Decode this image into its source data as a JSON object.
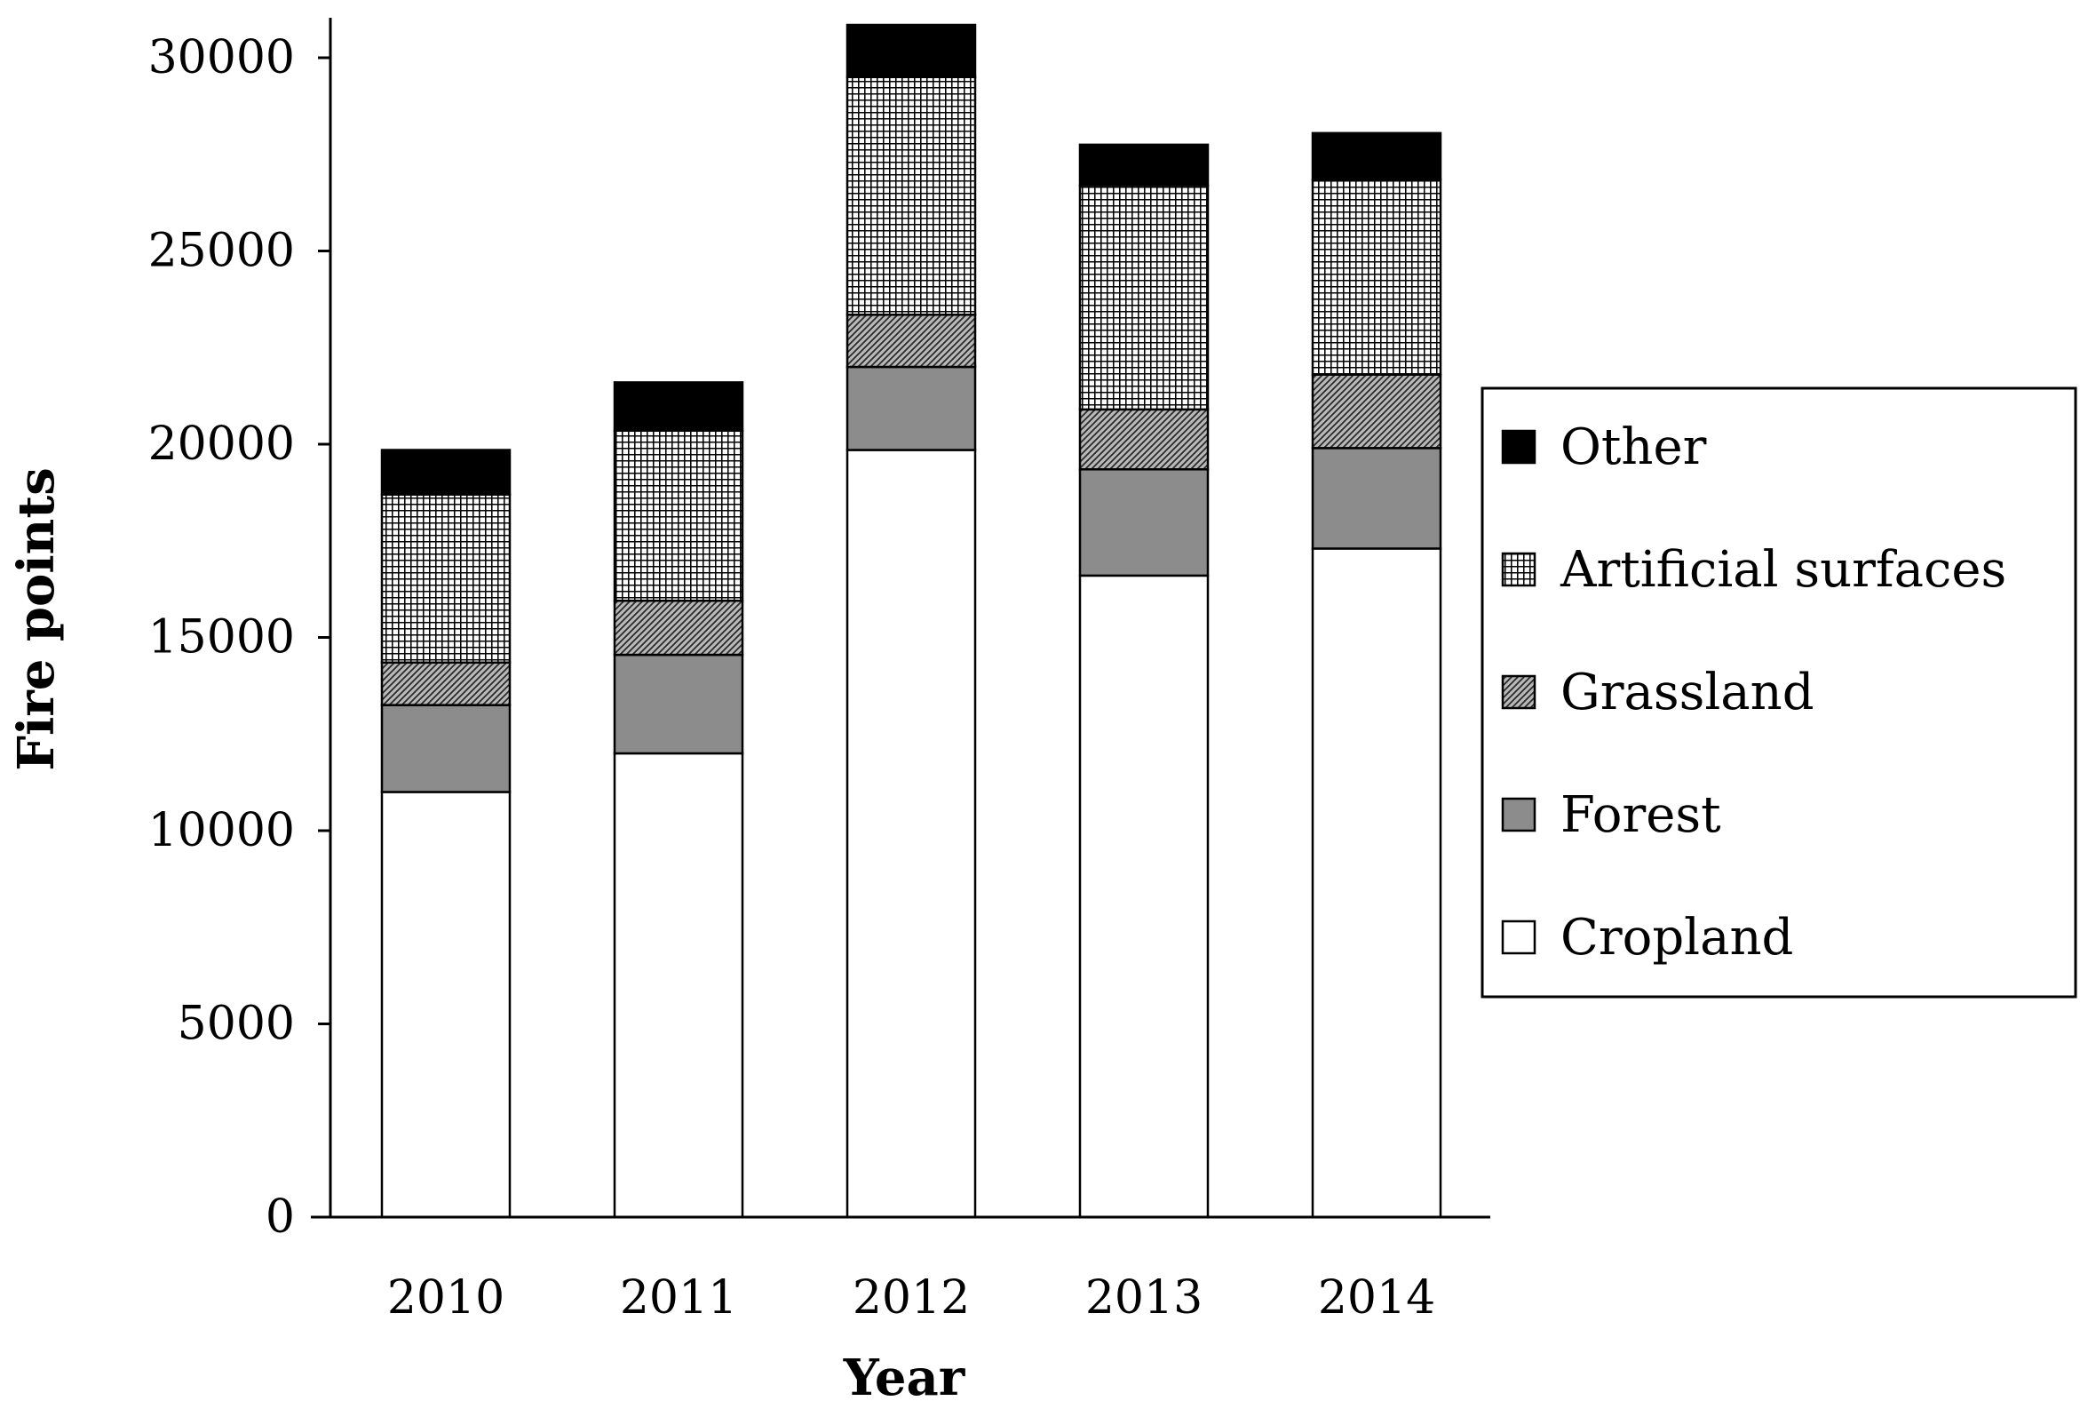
{
  "chart_data": {
    "type": "bar",
    "stacked": true,
    "title": "",
    "xlabel": "Year",
    "ylabel": "Fire points",
    "ylim": [
      0,
      31000
    ],
    "yticks": [
      0,
      5000,
      10000,
      15000,
      20000,
      25000,
      30000
    ],
    "categories": [
      "2010",
      "2011",
      "2012",
      "2013",
      "2014"
    ],
    "series": [
      {
        "name": "Cropland",
        "pattern": "white",
        "values": [
          11000,
          12000,
          19850,
          16600,
          17300
        ]
      },
      {
        "name": "Forest",
        "pattern": "gray",
        "values": [
          2250,
          2550,
          2150,
          2750,
          2600
        ]
      },
      {
        "name": "Grassland",
        "pattern": "diagonal-hatch",
        "values": [
          1100,
          1400,
          1350,
          1550,
          1900
        ]
      },
      {
        "name": "Artificial surfaces",
        "pattern": "grid",
        "values": [
          4350,
          4400,
          6150,
          5800,
          5050
        ]
      },
      {
        "name": "Other",
        "pattern": "black",
        "values": [
          1150,
          1250,
          1350,
          1050,
          1200
        ]
      }
    ],
    "legend": {
      "position": "right",
      "order": [
        "Other",
        "Artificial surfaces",
        "Grassland",
        "Forest",
        "Cropland"
      ]
    },
    "grid": false
  }
}
